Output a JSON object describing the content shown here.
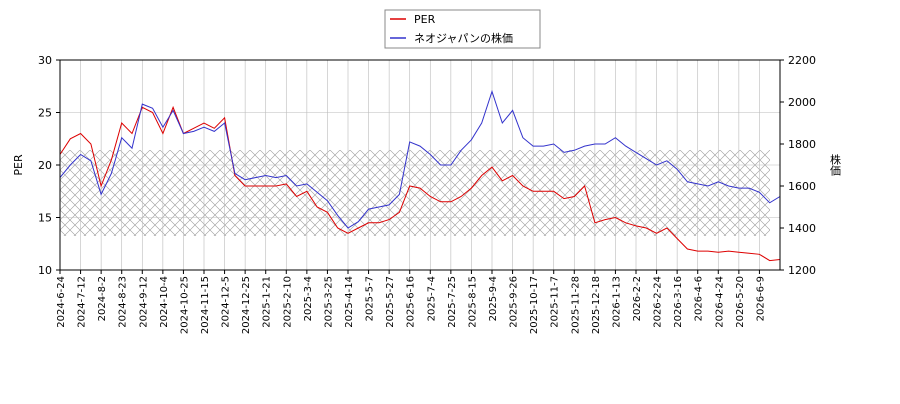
{
  "chart_data": {
    "type": "line",
    "x": [
      "2024-6-24",
      null,
      "2024-7-12",
      null,
      "2024-8-2",
      null,
      "2024-8-23",
      null,
      "2024-9-12",
      null,
      "2024-10-4",
      null,
      "2024-10-25",
      null,
      "2024-11-15",
      null,
      "2024-12-5",
      null,
      "2024-12-25",
      null,
      "2025-1-21",
      null,
      "2025-2-10",
      null,
      "2025-3-4",
      null,
      "2025-3-25",
      null,
      "2025-4-14",
      null,
      "2025-5-7",
      null,
      "2025-5-27",
      null,
      "2025-6-16",
      null,
      "2025-7-4",
      null,
      "2025-7-25",
      null,
      "2025-8-15",
      null,
      "2025-9-4",
      null,
      "2025-9-26",
      null,
      "2025-10-17",
      null,
      "2025-11-7",
      null,
      "2025-11-28",
      null,
      "2025-12-18",
      null,
      "2026-1-13",
      null,
      "2026-2-2",
      null,
      "2026-2-24",
      null,
      "2026-3-16",
      null,
      "2026-4-6",
      null,
      "2026-4-24",
      null,
      "2026-5-20",
      null,
      "2026-6-9",
      null,
      null
    ],
    "series": [
      {
        "name": "PER",
        "color": "#dd0000",
        "axis": "y",
        "values": [
          21,
          22.5,
          23,
          22,
          18,
          20.5,
          24,
          23,
          25.5,
          25,
          23,
          25.5,
          23,
          23.5,
          24,
          23.5,
          24.5,
          19,
          18,
          18,
          18,
          18,
          18.2,
          17,
          17.5,
          16,
          15.5,
          14,
          13.5,
          14,
          14.5,
          14.5,
          14.8,
          15.5,
          18,
          17.8,
          17,
          16.5,
          16.5,
          17,
          17.8,
          19,
          19.8,
          18.5,
          19,
          18,
          17.5,
          17.5,
          17.5,
          16.8,
          17,
          18,
          14.5,
          14.8,
          15,
          14.5,
          14.2,
          14,
          13.5,
          14,
          13,
          12,
          11.8,
          11.8,
          11.7,
          11.8,
          11.7,
          11.6,
          11.5,
          10.9,
          11
        ]
      },
      {
        "name": "ネオジャパンの株価",
        "color": "#3333cc",
        "axis": "y2",
        "values": [
          1640,
          1700,
          1750,
          1720,
          1560,
          1660,
          1830,
          1780,
          1990,
          1970,
          1880,
          1960,
          1850,
          1860,
          1880,
          1860,
          1900,
          1660,
          1630,
          1640,
          1650,
          1640,
          1650,
          1600,
          1610,
          1570,
          1530,
          1460,
          1400,
          1430,
          1490,
          1500,
          1510,
          1560,
          1810,
          1790,
          1750,
          1700,
          1700,
          1770,
          1820,
          1900,
          2050,
          1900,
          1960,
          1830,
          1790,
          1790,
          1800,
          1760,
          1770,
          1790,
          1800,
          1800,
          1830,
          1790,
          1760,
          1730,
          1700,
          1720,
          1680,
          1620,
          1610,
          1600,
          1620,
          1600,
          1590,
          1590,
          1570,
          1520,
          1550
        ]
      }
    ],
    "ylabel": "PER",
    "y2label": "株価",
    "ylim": [
      10,
      30
    ],
    "yticks": [
      10,
      15,
      20,
      25,
      30
    ],
    "y2lim": [
      1200,
      2200
    ],
    "y2ticks": [
      1200,
      1400,
      1600,
      1800,
      2000,
      2200
    ],
    "grid": true,
    "legend": "top"
  }
}
